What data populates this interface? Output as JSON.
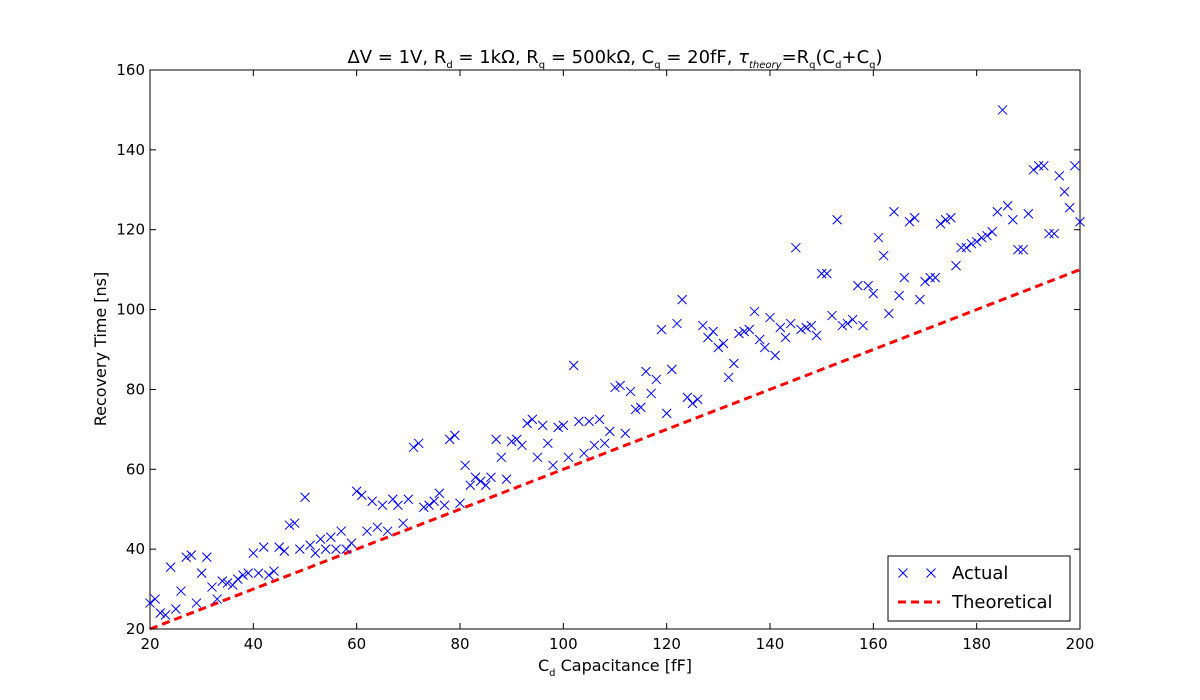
{
  "chart_data": {
    "type": "scatter",
    "title": "ΔV = 1V, R_d = 1kΩ, R_q = 500kΩ, C_q = 20fF, τ_theory=R_q(C_d+C_q)",
    "xlabel": "C_d Capacitance [fF]",
    "ylabel": "Recovery Time [ns]",
    "xlim": [
      20,
      200
    ],
    "ylim": [
      20,
      160
    ],
    "xticks": [
      20,
      40,
      60,
      80,
      100,
      120,
      140,
      160,
      180,
      200
    ],
    "yticks": [
      20,
      40,
      60,
      80,
      100,
      120,
      140,
      160
    ],
    "grid": false,
    "legend_position": "bottom-right",
    "series": [
      {
        "name": "Actual",
        "style": "markers-x",
        "color": "#0000ff",
        "x": [
          20,
          21,
          22,
          23,
          24,
          25,
          26,
          27,
          28,
          29,
          30,
          31,
          32,
          33,
          34,
          35,
          36,
          37,
          38,
          39,
          40,
          41,
          42,
          43,
          44,
          45,
          46,
          47,
          48,
          49,
          50,
          51,
          52,
          53,
          54,
          55,
          56,
          57,
          58,
          59,
          60,
          61,
          62,
          63,
          64,
          65,
          66,
          67,
          68,
          69,
          70,
          71,
          72,
          73,
          74,
          75,
          76,
          77,
          78,
          79,
          80,
          81,
          82,
          83,
          84,
          85,
          86,
          87,
          88,
          89,
          90,
          91,
          92,
          93,
          94,
          95,
          96,
          97,
          98,
          99,
          100,
          101,
          102,
          103,
          104,
          105,
          106,
          107,
          108,
          109,
          110,
          111,
          112,
          113,
          114,
          115,
          116,
          117,
          118,
          119,
          120,
          121,
          122,
          123,
          124,
          125,
          126,
          127,
          128,
          129,
          130,
          131,
          132,
          133,
          134,
          135,
          136,
          137,
          138,
          139,
          140,
          141,
          142,
          143,
          144,
          145,
          146,
          147,
          148,
          149,
          150,
          151,
          152,
          153,
          154,
          155,
          156,
          157,
          158,
          159,
          160,
          161,
          162,
          163,
          164,
          165,
          166,
          167,
          168,
          169,
          170,
          171,
          172,
          173,
          174,
          175,
          176,
          177,
          178,
          179,
          180,
          181,
          182,
          183,
          184,
          185,
          186,
          187,
          188,
          189,
          190,
          191,
          192,
          193,
          194,
          195,
          196,
          197,
          198,
          199,
          200
        ],
        "y": [
          26.5,
          27.5,
          24,
          23.5,
          35.5,
          25,
          29.5,
          38,
          38.5,
          26.5,
          34,
          38,
          30.5,
          27.5,
          32,
          31.5,
          31,
          32.5,
          33.5,
          34,
          39,
          34,
          40.5,
          33.5,
          34.5,
          40.5,
          39.5,
          46,
          46.5,
          40,
          53,
          41,
          39,
          42.5,
          40,
          43,
          40,
          44.5,
          40,
          41.5,
          54.5,
          53.5,
          44.5,
          52,
          45.5,
          51,
          44.5,
          52.5,
          51,
          46.5,
          52.5,
          65.5,
          66.5,
          50.5,
          51,
          52,
          54,
          51,
          67.5,
          68.5,
          51.5,
          61,
          56,
          58,
          57,
          56,
          58,
          67.5,
          63,
          57.5,
          67,
          67.5,
          66,
          71.5,
          72.5,
          63,
          71,
          66.5,
          61,
          70.5,
          71,
          63,
          86,
          72,
          64,
          72,
          66,
          72.5,
          66.5,
          69.5,
          80.5,
          81,
          69,
          79.5,
          75,
          75.5,
          84.5,
          79,
          82.5,
          95,
          74,
          85,
          96.5,
          102.5,
          78,
          76.5,
          77.5,
          96,
          93,
          94.5,
          90.5,
          91.5,
          83,
          86.5,
          94,
          94.5,
          95,
          99.5,
          92.5,
          90.5,
          98,
          88.5,
          95.5,
          93,
          96.5,
          115.5,
          95,
          95.5,
          96,
          93.5,
          109,
          109,
          98.5,
          122.5,
          96,
          96.5,
          97.5,
          106,
          96,
          106,
          104,
          118,
          113.5,
          99,
          124.5,
          103.5,
          108,
          122,
          123,
          102.5,
          107,
          108,
          108,
          121.5,
          122.5,
          123,
          111,
          115.5,
          115.5,
          116.5,
          117,
          118,
          118.5,
          119.5,
          124.5,
          150,
          126,
          122.5,
          115,
          115,
          124,
          135,
          136,
          136,
          119,
          119,
          133.5,
          129.5,
          125.5,
          136,
          122
        ]
      },
      {
        "name": "Theoretical",
        "style": "dashed-line",
        "color": "#ff0000",
        "x": [
          20,
          200
        ],
        "y": [
          20,
          110
        ]
      }
    ]
  }
}
